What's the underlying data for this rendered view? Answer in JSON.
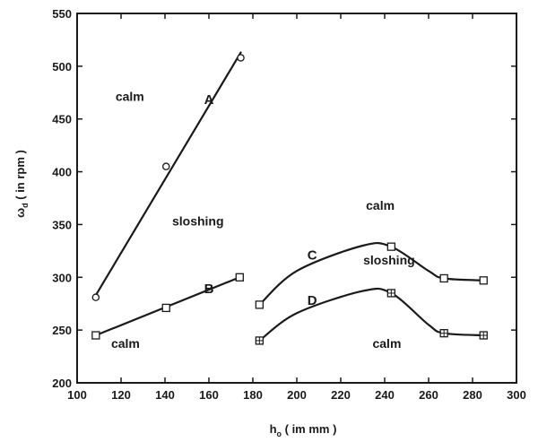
{
  "chart_data": {
    "type": "line",
    "xlabel": {
      "main": "h",
      "sub": "o",
      "unit": " ( im mm )"
    },
    "ylabel": {
      "main": "ω",
      "sub": "d",
      "unit": " ( in rpm )"
    },
    "xlim": [
      100,
      300
    ],
    "ylim": [
      200,
      550
    ],
    "xticks": [
      100,
      120,
      140,
      160,
      180,
      200,
      220,
      240,
      260,
      280,
      300
    ],
    "yticks": [
      200,
      250,
      300,
      350,
      400,
      450,
      500,
      550
    ],
    "grid": false,
    "legend": "none",
    "series": [
      {
        "name": "A",
        "marker": "circle",
        "fit": "straight",
        "points": [
          [
            108.5,
            281
          ],
          [
            140.5,
            405
          ],
          [
            174.5,
            508
          ]
        ],
        "line": [
          [
            108.5,
            283
          ],
          [
            174.5,
            513
          ]
        ],
        "label_at": [
          160,
          464
        ]
      },
      {
        "name": "B",
        "marker": "square",
        "fit": "straight",
        "points": [
          [
            108.5,
            245
          ],
          [
            140.5,
            271
          ],
          [
            174,
            300
          ]
        ],
        "line": [
          [
            108.5,
            245
          ],
          [
            174,
            300
          ]
        ],
        "label_at": [
          160,
          285
        ]
      },
      {
        "name": "C",
        "marker": "square",
        "fit": "smooth",
        "points": [
          [
            183,
            274
          ],
          [
            243,
            329
          ],
          [
            267,
            299
          ],
          [
            285,
            297
          ]
        ],
        "line": [
          [
            183,
            274
          ],
          [
            200,
            306
          ],
          [
            230,
            330
          ],
          [
            243,
            329
          ],
          [
            260,
            306
          ],
          [
            267,
            299
          ],
          [
            285,
            297
          ]
        ],
        "label_at": [
          207,
          317
        ]
      },
      {
        "name": "D",
        "marker": "square-plus",
        "fit": "smooth",
        "points": [
          [
            183,
            240
          ],
          [
            243,
            285
          ],
          [
            267,
            247
          ],
          [
            285,
            245
          ]
        ],
        "line": [
          [
            183,
            240
          ],
          [
            200,
            266
          ],
          [
            230,
            287
          ],
          [
            243,
            285
          ],
          [
            260,
            255
          ],
          [
            267,
            247
          ],
          [
            285,
            245
          ]
        ],
        "label_at": [
          207,
          274
        ]
      }
    ],
    "annotations": [
      {
        "text": "calm",
        "at": [
          124,
          467
        ]
      },
      {
        "text": "sloshing",
        "at": [
          155,
          349
        ]
      },
      {
        "text": "calm",
        "at": [
          122,
          233
        ]
      },
      {
        "text": "calm",
        "at": [
          238,
          364
        ]
      },
      {
        "text": "sloshing",
        "at": [
          242,
          312
        ]
      },
      {
        "text": "calm",
        "at": [
          241,
          233
        ]
      }
    ],
    "style": {
      "line_color": "#1a1a1a",
      "marker_fill": "#ffffff"
    }
  }
}
